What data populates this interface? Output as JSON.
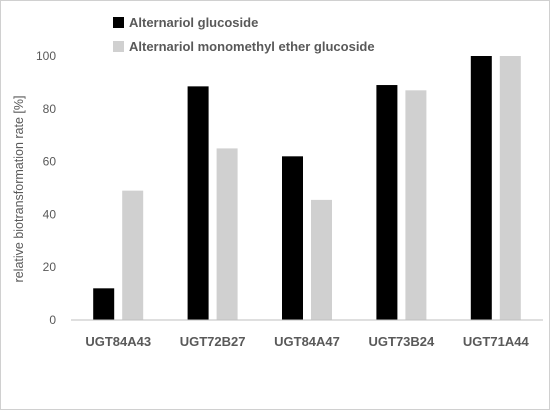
{
  "chart_data": {
    "type": "bar",
    "title": "",
    "xlabel": "",
    "ylabel": "relative biotransformation rate [%]",
    "ylim": [
      0,
      100
    ],
    "yticks": [
      0,
      20,
      40,
      60,
      80,
      100
    ],
    "grid": false,
    "legend_position": "top-left",
    "categories": [
      "UGT84A43",
      "UGT72B27",
      "UGT84A47",
      "UGT73B24",
      "UGT71A44"
    ],
    "series": [
      {
        "name": "Alternariol glucoside",
        "color": "#000000",
        "values": [
          12,
          88.5,
          62,
          89,
          100
        ]
      },
      {
        "name": "Alternariol monomethyl ether glucoside",
        "color": "#d0d0d0",
        "values": [
          49,
          65,
          45.5,
          87,
          100
        ]
      }
    ]
  }
}
